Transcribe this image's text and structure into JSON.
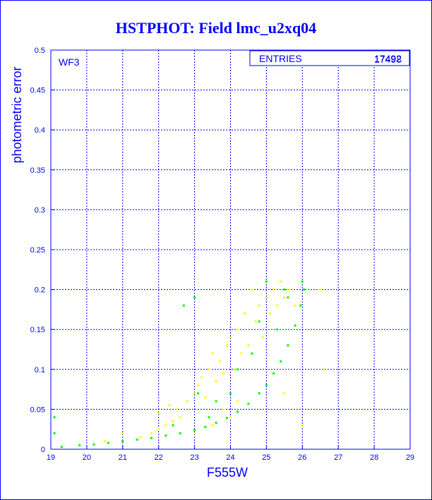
{
  "chart_data": {
    "type": "scatter",
    "title": "HSTPHOT: Field lmc_u2xq04",
    "xlabel": "F555W",
    "ylabel": "photometric error",
    "annotation": "WF3",
    "stats": {
      "label": "ENTRIES",
      "value_a": "17492",
      "value_b": "17498"
    },
    "xlim": [
      19,
      29
    ],
    "ylim": [
      0,
      0.5
    ],
    "xticks": [
      "19",
      "20",
      "21",
      "22",
      "23",
      "24",
      "25",
      "26",
      "27",
      "28",
      "29"
    ],
    "yticks": [
      "0",
      "0.05",
      "0.1",
      "0.15",
      "0.2",
      "0.25",
      "0.3",
      "0.35",
      "0.4",
      "0.45",
      "0.5"
    ],
    "grid": true,
    "series": [
      {
        "color": "#ffff00",
        "points": [
          [
            21.5,
            0.015
          ],
          [
            21.8,
            0.02
          ],
          [
            22,
            0.025
          ],
          [
            22.2,
            0.03
          ],
          [
            22.4,
            0.035
          ],
          [
            22.5,
            0.05
          ],
          [
            22.6,
            0.04
          ],
          [
            22.8,
            0.06
          ],
          [
            23,
            0.07
          ],
          [
            23.1,
            0.08
          ],
          [
            23.2,
            0.09
          ],
          [
            23.3,
            0.065
          ],
          [
            23.4,
            0.1
          ],
          [
            23.5,
            0.12
          ],
          [
            23.6,
            0.085
          ],
          [
            23.7,
            0.11
          ],
          [
            23.8,
            0.095
          ],
          [
            23.9,
            0.13
          ],
          [
            24,
            0.14
          ],
          [
            24.1,
            0.1
          ],
          [
            24.2,
            0.15
          ],
          [
            24.3,
            0.12
          ],
          [
            24.4,
            0.17
          ],
          [
            24.5,
            0.13
          ],
          [
            24.6,
            0.2
          ],
          [
            24.7,
            0.16
          ],
          [
            24.8,
            0.18
          ],
          [
            24.9,
            0.14
          ],
          [
            25,
            0.19
          ],
          [
            25.1,
            0.17
          ],
          [
            25.2,
            0.2
          ],
          [
            25.3,
            0.18
          ],
          [
            25.4,
            0.21
          ],
          [
            25.5,
            0.19
          ],
          [
            25.6,
            0.2
          ],
          [
            25.8,
            0.18
          ],
          [
            26.5,
            0.2
          ],
          [
            26.6,
            0.1
          ],
          [
            23,
            0.02
          ],
          [
            23.5,
            0.03
          ],
          [
            24,
            0.04
          ],
          [
            22,
            0.045
          ],
          [
            22.3,
            0.055
          ],
          [
            23.8,
            0.05
          ],
          [
            24.2,
            0.06
          ],
          [
            25.5,
            0.07
          ],
          [
            26,
            0.03
          ],
          [
            20.5,
            0.01
          ],
          [
            21,
            0.02
          ]
        ]
      },
      {
        "color": "#00ff00",
        "points": [
          [
            19.3,
            0.003
          ],
          [
            19.8,
            0.005
          ],
          [
            20.2,
            0.006
          ],
          [
            20.6,
            0.008
          ],
          [
            21,
            0.01
          ],
          [
            21.4,
            0.012
          ],
          [
            21.8,
            0.014
          ],
          [
            22.2,
            0.017
          ],
          [
            22.6,
            0.02
          ],
          [
            23,
            0.024
          ],
          [
            23.3,
            0.028
          ],
          [
            23.6,
            0.033
          ],
          [
            23.9,
            0.039
          ],
          [
            24.2,
            0.047
          ],
          [
            24.5,
            0.057
          ],
          [
            24.8,
            0.07
          ],
          [
            25,
            0.08
          ],
          [
            25.2,
            0.095
          ],
          [
            25.4,
            0.11
          ],
          [
            25.6,
            0.13
          ],
          [
            25.8,
            0.155
          ],
          [
            25.95,
            0.18
          ],
          [
            26.05,
            0.2
          ],
          [
            23,
            0.19
          ],
          [
            23.1,
            0.07
          ],
          [
            22.7,
            0.18
          ],
          [
            25,
            0.21
          ],
          [
            25.5,
            0.2
          ],
          [
            24.8,
            0.16
          ],
          [
            24.2,
            0.1
          ],
          [
            23.6,
            0.06
          ],
          [
            24.6,
            0.12
          ],
          [
            25.3,
            0.15
          ],
          [
            22.4,
            0.03
          ],
          [
            23.4,
            0.04
          ],
          [
            24,
            0.07
          ],
          [
            25.6,
            0.19
          ],
          [
            26,
            0.21
          ],
          [
            19.1,
            0.02
          ],
          [
            19.1,
            0.04
          ]
        ]
      }
    ]
  }
}
